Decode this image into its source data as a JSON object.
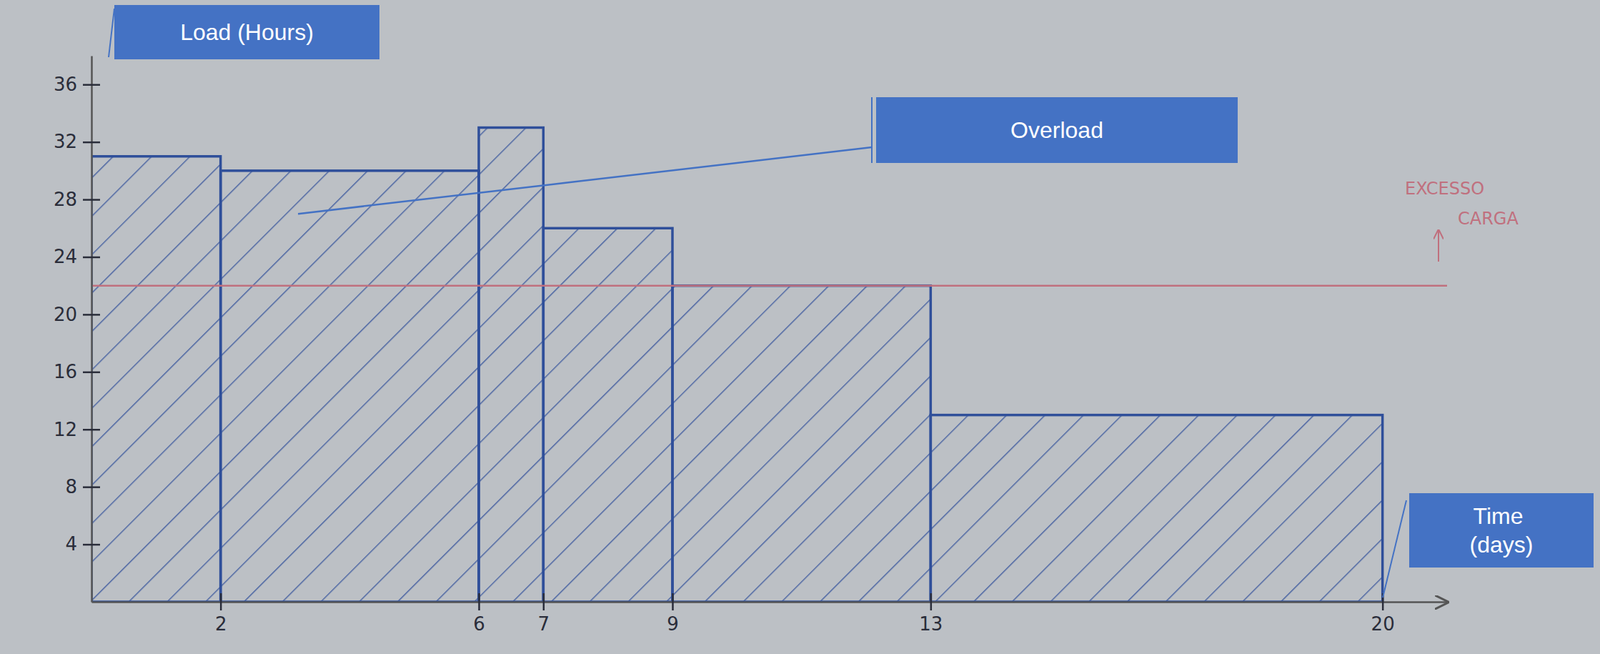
{
  "chart_data": {
    "type": "histogram",
    "bins": [
      0,
      2,
      6,
      7,
      9,
      13,
      20
    ],
    "values": [
      31,
      30,
      33,
      26,
      22,
      13
    ],
    "color": "#2f4f9a",
    "xlim": [
      0,
      21
    ],
    "ylim": [
      0,
      38
    ],
    "xticks": [
      2,
      6,
      7,
      9,
      13,
      20
    ],
    "yticks": [
      4,
      8,
      12,
      16,
      20,
      24,
      28,
      32,
      36
    ],
    "y_label": "Load (Hours)",
    "x_label": "Time (days)",
    "annotations": [
      {
        "text": "Overload",
        "x": 3.2,
        "y": 27
      }
    ],
    "reference_line": {
      "value": 22,
      "label": "EXCESSO CARGA",
      "color": "#c0707e"
    }
  }
}
